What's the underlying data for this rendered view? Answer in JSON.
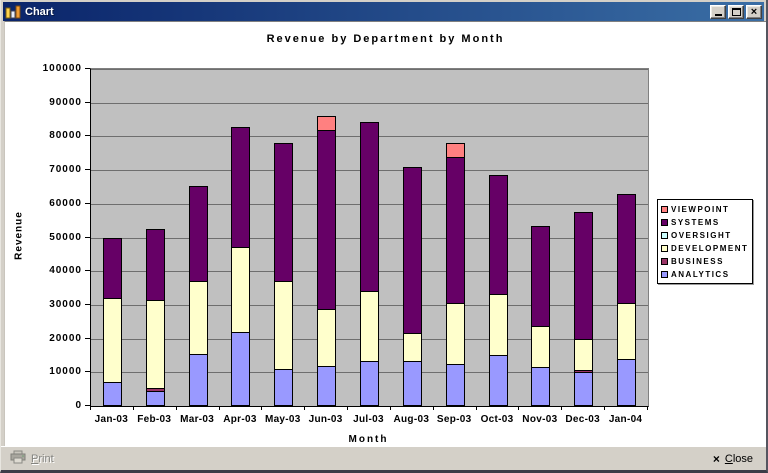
{
  "window": {
    "title": "Chart",
    "icon": "bar-chart-icon",
    "controls": {
      "minimize": "minimize-icon",
      "maximize": "maximize-icon",
      "close": "close-icon"
    }
  },
  "chart_data": {
    "type": "bar",
    "stacked": true,
    "title": "Revenue by Department by Month",
    "xlabel": "Month",
    "ylabel": "Revenue",
    "ylim": [
      0,
      100000
    ],
    "ytick_step": 10000,
    "yticks": [
      "0",
      "10000",
      "20000",
      "30000",
      "40000",
      "50000",
      "60000",
      "70000",
      "80000",
      "90000",
      "100000"
    ],
    "grid": true,
    "plot_bg": "#C0C0C0",
    "legend_position": "right",
    "legend_order_top_to_bottom": [
      "VIEWPOINT",
      "SYSTEMS",
      "OVERSIGHT",
      "DEVELOPMENT",
      "BUSINESS",
      "ANALYTICS"
    ],
    "categories": [
      "Jan-03",
      "Feb-03",
      "Mar-03",
      "Apr-03",
      "May-03",
      "Jun-03",
      "Jul-03",
      "Aug-03",
      "Sep-03",
      "Oct-03",
      "Nov-03",
      "Dec-03",
      "Jan-04"
    ],
    "series": [
      {
        "name": "ANALYTICS",
        "color": "#9999FF",
        "values": [
          7000,
          4500,
          15500,
          22000,
          11000,
          12000,
          13500,
          13500,
          12500,
          15000,
          11500,
          10000,
          14000
        ]
      },
      {
        "name": "BUSINESS",
        "color": "#993366",
        "values": [
          0,
          1000,
          0,
          0,
          0,
          0,
          0,
          0,
          0,
          0,
          0,
          1000,
          0
        ]
      },
      {
        "name": "DEVELOPMENT",
        "color": "#FFFFCC",
        "values": [
          25500,
          26500,
          22000,
          25500,
          26500,
          17000,
          21000,
          8500,
          18500,
          18500,
          12500,
          9500,
          17000
        ]
      },
      {
        "name": "OVERSIGHT",
        "color": "#CCFFFF",
        "values": [
          0,
          0,
          0,
          0,
          0,
          0,
          0,
          0,
          0,
          0,
          0,
          0,
          0
        ]
      },
      {
        "name": "SYSTEMS",
        "color": "#660066",
        "values": [
          18000,
          21500,
          28500,
          36000,
          41000,
          53500,
          50500,
          49500,
          43500,
          35500,
          30000,
          38000,
          32500
        ]
      },
      {
        "name": "VIEWPOINT",
        "color": "#FF8080",
        "values": [
          0,
          0,
          0,
          0,
          0,
          4500,
          0,
          0,
          4500,
          0,
          0,
          0,
          0
        ]
      }
    ]
  },
  "footer": {
    "print_label": "Print",
    "close_label": "Close"
  },
  "colors": {
    "titlebar_left": "#0a246a",
    "titlebar_right": "#3a6ea5",
    "window_chrome": "#D4D0C8",
    "plot_bg": "#C0C0C0",
    "gridline": "#6e6e6e"
  }
}
